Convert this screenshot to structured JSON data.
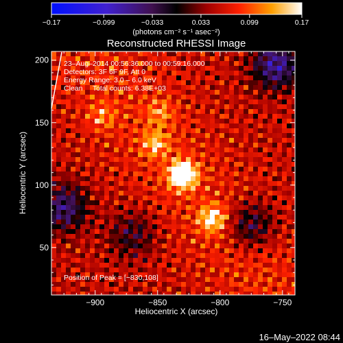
{
  "chart_data": {
    "type": "heatmap",
    "title": "Reconstructed RHESSI Image",
    "xlabel": "Heliocentric X (arcsec)",
    "ylabel": "Heliocentric Y (arcsec)",
    "xlim": [
      -935,
      -740
    ],
    "ylim": [
      12,
      207
    ],
    "xticks": [
      -900,
      -850,
      -800,
      -750
    ],
    "xtick_labels": [
      "−900",
      "−850",
      "−800",
      "−750"
    ],
    "yticks": [
      50,
      100,
      150,
      200
    ],
    "ytick_labels": [
      "50",
      "100",
      "150",
      "200"
    ],
    "colorbar": {
      "range": [
        -0.17,
        0.17
      ],
      "ticks": [
        -0.17,
        -0.099,
        -0.033,
        0.033,
        0.099,
        0.17
      ],
      "tick_labels": [
        "−0.17",
        "−0.099",
        "−0.033",
        "0.033",
        "0.099",
        "0.17"
      ],
      "unit_label": "(photons cm⁻² s⁻¹ asec⁻²)",
      "colormap": "blue-purple-red-yellow-white"
    },
    "annotations": [
      "23–Aug–2014 00:56:36.000 to 00:59:16.000",
      "Detectors: 3F 6F 9F, Att 0",
      "Energy Range: 3.0 – 6.0 keV",
      "Clean     Total counts: 6.38E+03"
    ],
    "peak_label": "Position of Peak = [−830,108]",
    "peak": {
      "x": -830,
      "y": 108,
      "value": 0.17
    },
    "sources": [
      {
        "x": -830,
        "y": 108,
        "amplitude": 0.17
      },
      {
        "x": -806,
        "y": 73,
        "amplitude": 0.1
      },
      {
        "x": -852,
        "y": 133,
        "amplitude": 0.07
      },
      {
        "x": -848,
        "y": 158,
        "amplitude": 0.05
      },
      {
        "x": -895,
        "y": 155,
        "amplitude": 0.05
      }
    ],
    "negative_regions": [
      {
        "x": -755,
        "y": 196,
        "amplitude": -0.12
      },
      {
        "x": -925,
        "y": 82,
        "amplitude": -0.1
      },
      {
        "x": -870,
        "y": 60,
        "amplitude": -0.06
      },
      {
        "x": -775,
        "y": 68,
        "amplitude": -0.08
      }
    ]
  },
  "footer": {
    "date_stamp": "16–May–2022 08:44"
  },
  "colors": {
    "background": "#000000",
    "text": "#ffffff"
  }
}
